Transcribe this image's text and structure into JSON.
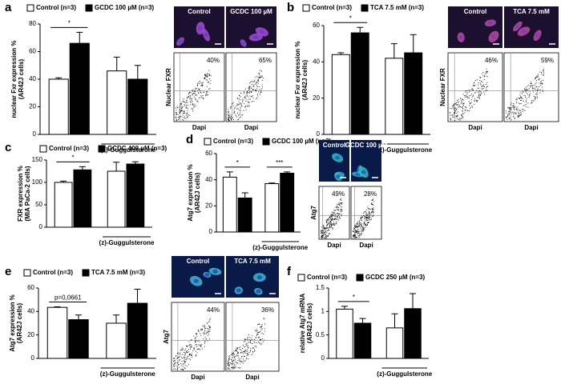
{
  "chart_data": [
    {
      "type": "bar",
      "panel": "a",
      "ylabel": [
        "nuclear Fxr expression %",
        "(AR42J cells)"
      ],
      "ylim": [
        0,
        80
      ],
      "yticks": [
        0,
        20,
        40,
        60,
        80
      ],
      "series": [
        {
          "name": "Control (n=3)",
          "color": "#ffffff",
          "values": [
            40,
            46
          ],
          "errors": [
            1,
            10
          ]
        },
        {
          "name": "GCDC 100 µM (n=3)",
          "color": "#000000",
          "values": [
            66,
            40
          ],
          "errors": [
            8,
            10
          ]
        }
      ],
      "group_label": "(z)-Guggulsterone",
      "annotations": [
        "*"
      ],
      "micrograph_labels": [
        "Control",
        "GCDC 100 µM"
      ],
      "flow_ylabel": "Nuclear FXR",
      "flow_xlabel": "Dapi",
      "flow_percents": [
        "40%",
        "65%"
      ]
    },
    {
      "type": "bar",
      "panel": "b",
      "ylabel": [
        "nuclear Fxr expression %",
        "(AR42J cells)"
      ],
      "ylim": [
        0,
        60
      ],
      "yticks": [
        0,
        20,
        40,
        60
      ],
      "series": [
        {
          "name": "Control (n=3)",
          "color": "#ffffff",
          "values": [
            44,
            42
          ],
          "errors": [
            1,
            8
          ]
        },
        {
          "name": "TCA 7.5 mM (n=3)",
          "color": "#000000",
          "values": [
            56,
            45
          ],
          "errors": [
            3,
            10
          ]
        }
      ],
      "group_label": "(z)-Guggulsterone",
      "annotations": [
        "*"
      ],
      "micrograph_labels": [
        "Control",
        "TCA 7.5 mM"
      ],
      "flow_ylabel": "Nuclear FXR",
      "flow_xlabel": "Dapi",
      "flow_percents": [
        "46%",
        "59%"
      ]
    },
    {
      "type": "bar",
      "panel": "c",
      "ylabel": [
        "FXR expression %",
        "(MIA PaCa-2 cells)"
      ],
      "ylim": [
        0,
        150
      ],
      "yticks": [
        0,
        50,
        100,
        150
      ],
      "series": [
        {
          "name": "Control (n=3)",
          "color": "#ffffff",
          "values": [
            100,
            125
          ],
          "errors": [
            3,
            20
          ]
        },
        {
          "name": "GCDC 400 µM (n=3)",
          "color": "#000000",
          "values": [
            128,
            141
          ],
          "errors": [
            7,
            5
          ]
        }
      ],
      "group_label": "(z)-Guggulsterone",
      "annotations": [
        "*"
      ]
    },
    {
      "type": "bar",
      "panel": "d",
      "ylabel": [
        "Atg7 expression %",
        "(AR42J cells)"
      ],
      "ylim": [
        0,
        60
      ],
      "yticks": [
        0,
        20,
        40,
        60
      ],
      "series": [
        {
          "name": "Control (n=3)",
          "color": "#ffffff",
          "values": [
            42,
            37
          ],
          "errors": [
            4,
            0.5
          ]
        },
        {
          "name": "GCDC 100 µM (n=3)",
          "color": "#000000",
          "values": [
            26,
            45
          ],
          "errors": [
            4,
            1
          ]
        }
      ],
      "group_label": "(z)-Guggulsterone",
      "annotations": [
        "*",
        "***"
      ],
      "micrograph_labels": [
        "Control",
        "GCDC 100 µM"
      ],
      "flow_ylabel": "Atg7",
      "flow_xlabel": "Dapi",
      "flow_percents": [
        "49%",
        "28%"
      ]
    },
    {
      "type": "bar",
      "panel": "e",
      "ylabel": [
        "Atg7 expression %",
        "(AR42J cells)"
      ],
      "ylim": [
        0,
        60
      ],
      "yticks": [
        0,
        20,
        40,
        60
      ],
      "series": [
        {
          "name": "Control (n=3)",
          "color": "#ffffff",
          "values": [
            43.5,
            30
          ],
          "errors": [
            0.5,
            7
          ]
        },
        {
          "name": "TCA 7.5 mM (n=3)",
          "color": "#000000",
          "values": [
            33,
            47
          ],
          "errors": [
            4,
            12
          ]
        }
      ],
      "group_label": "(z)-Guggulsterone",
      "annotations": [
        "p=0,0661"
      ],
      "micrograph_labels": [
        "Control",
        "TCA 7.5 mM"
      ],
      "flow_ylabel": "Atg7",
      "flow_xlabel": "Dapi",
      "flow_percents": [
        "44%",
        "36%"
      ]
    },
    {
      "type": "bar",
      "panel": "f",
      "ylabel": [
        "relative Atg7 mRNA",
        "(AR42J cells)"
      ],
      "ylim": [
        0,
        1.5
      ],
      "yticks": [
        0,
        0.5,
        1,
        1.5
      ],
      "series": [
        {
          "name": "Control (n=3)",
          "color": "#ffffff",
          "values": [
            1.05,
            0.65
          ],
          "errors": [
            0.06,
            0.3
          ]
        },
        {
          "name": "GCDC 250 µM (n=3)",
          "color": "#000000",
          "values": [
            0.75,
            1.06
          ],
          "errors": [
            0.1,
            0.32
          ]
        }
      ],
      "group_label": "(z)-Guggulsterone",
      "annotations": [
        "*"
      ]
    }
  ]
}
